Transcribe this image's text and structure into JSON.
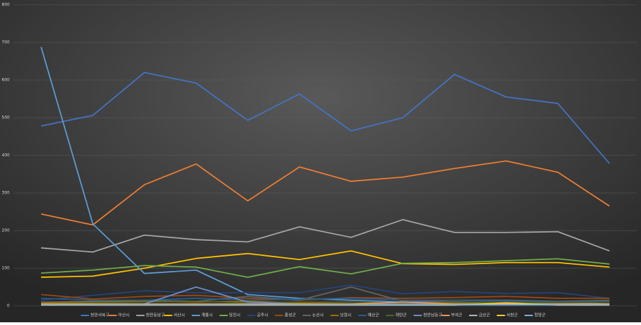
{
  "chart_data": {
    "type": "line",
    "categories": [
      null,
      null,
      null,
      null,
      null,
      null,
      null,
      null,
      null,
      null,
      null,
      null
    ],
    "ylim": [
      0,
      800
    ],
    "yticks": [
      0,
      100,
      200,
      300,
      400,
      500,
      600,
      700,
      800
    ],
    "grid": true,
    "legend": "bottom",
    "series": [
      {
        "name": "천안서북구",
        "color": "#4472c4",
        "values": [
          478,
          506,
          620,
          592,
          493,
          563,
          465,
          500,
          615,
          555,
          538,
          378
        ]
      },
      {
        "name": "아산시",
        "color": "#ed7d31",
        "values": [
          244,
          215,
          322,
          377,
          279,
          369,
          331,
          342,
          365,
          385,
          355,
          265
        ]
      },
      {
        "name": "천안동남구",
        "color": "#a5a5a5",
        "values": [
          154,
          143,
          188,
          176,
          170,
          210,
          182,
          229,
          195,
          195,
          197,
          146
        ]
      },
      {
        "name": "서산시",
        "color": "#ffc000",
        "values": [
          76,
          79,
          100,
          126,
          139,
          123,
          146,
          112,
          110,
          115,
          115,
          103
        ]
      },
      {
        "name": "계룡시",
        "color": "#5b9bd5",
        "values": [
          688,
          218,
          86,
          95,
          30,
          20,
          15,
          10,
          10,
          8,
          8,
          5
        ]
      },
      {
        "name": "당진시",
        "color": "#70ad47",
        "values": [
          87,
          95,
          107,
          103,
          76,
          104,
          85,
          113,
          115,
          120,
          125,
          111
        ]
      },
      {
        "name": "공주시",
        "color": "#264478",
        "values": [
          15,
          28,
          40,
          35,
          35,
          35,
          55,
          32,
          38,
          33,
          35,
          20
        ]
      },
      {
        "name": "홍성군",
        "color": "#9e480e",
        "values": [
          30,
          18,
          25,
          28,
          20,
          15,
          22,
          20,
          22,
          25,
          20,
          20
        ]
      },
      {
        "name": "논산시",
        "color": "#636363",
        "values": [
          10,
          12,
          15,
          12,
          25,
          15,
          50,
          12,
          15,
          15,
          12,
          15
        ]
      },
      {
        "name": "보령시",
        "color": "#997300",
        "values": [
          8,
          10,
          12,
          10,
          12,
          8,
          10,
          8,
          10,
          8,
          8,
          10
        ]
      },
      {
        "name": "예산군",
        "color": "#255e91",
        "values": [
          20,
          15,
          15,
          20,
          15,
          18,
          20,
          15,
          15,
          12,
          10,
          12
        ]
      },
      {
        "name": "태안군",
        "color": "#43682b",
        "values": [
          5,
          8,
          10,
          12,
          8,
          10,
          10,
          8,
          8,
          8,
          8,
          10
        ]
      },
      {
        "name": "천안남동구",
        "color": "#698ed0",
        "values": [
          5,
          5,
          5,
          50,
          10,
          5,
          5,
          5,
          5,
          5,
          5,
          5
        ]
      },
      {
        "name": "부여군",
        "color": "#f1975a",
        "values": [
          5,
          5,
          5,
          5,
          5,
          5,
          5,
          10,
          5,
          5,
          5,
          5
        ]
      },
      {
        "name": "금산군",
        "color": "#b7b7b7",
        "values": [
          3,
          3,
          3,
          3,
          3,
          3,
          3,
          3,
          3,
          3,
          3,
          3
        ]
      },
      {
        "name": "서천군",
        "color": "#ffcd33",
        "values": [
          2,
          2,
          2,
          2,
          2,
          2,
          2,
          2,
          2,
          8,
          2,
          2
        ]
      },
      {
        "name": "청양군",
        "color": "#7cafdd",
        "values": [
          3,
          3,
          3,
          3,
          3,
          3,
          3,
          3,
          3,
          3,
          3,
          3
        ]
      }
    ]
  }
}
